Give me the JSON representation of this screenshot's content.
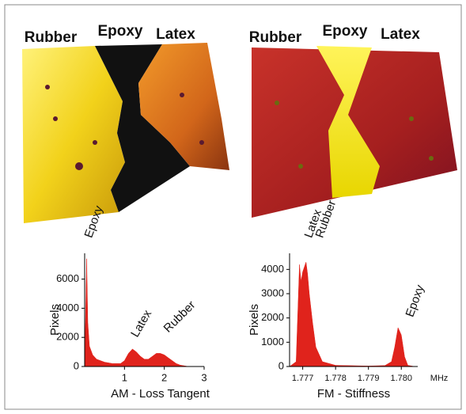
{
  "images": [
    {
      "labels": [
        "Rubber",
        "Epoxy",
        "Latex"
      ]
    },
    {
      "labels": [
        "Rubber",
        "Epoxy",
        "Latex"
      ]
    }
  ],
  "chart_data": [
    {
      "type": "area",
      "x_label": "AM - Loss Tangent",
      "y_label": "Pixels",
      "xlim": [
        0,
        3
      ],
      "xticks": [
        1,
        2,
        3
      ],
      "ylim": [
        0,
        7500
      ],
      "yticks": [
        0,
        2000,
        4000,
        6000
      ],
      "series": [
        {
          "color": "#e0231c",
          "x": [
            0,
            0.02,
            0.05,
            0.08,
            0.12,
            0.2,
            0.3,
            0.5,
            0.7,
            0.9,
            1.0,
            1.1,
            1.2,
            1.3,
            1.4,
            1.5,
            1.6,
            1.7,
            1.8,
            1.9,
            2.0,
            2.1,
            2.2,
            2.3,
            2.4,
            2.5,
            2.6,
            2.7
          ],
          "values": [
            0,
            3000,
            7400,
            3000,
            1400,
            800,
            500,
            300,
            200,
            200,
            400,
            900,
            1200,
            1000,
            700,
            500,
            500,
            700,
            900,
            900,
            800,
            600,
            400,
            200,
            100,
            50,
            0,
            0
          ]
        }
      ],
      "annotations": [
        "Epoxy",
        "Latex",
        "Rubber"
      ]
    },
    {
      "type": "area",
      "x_label": "FM - Stiffness",
      "y_label": "Pixels",
      "x_unit": "MHz",
      "xlim": [
        1.7766,
        1.7805
      ],
      "xticks": [
        1.777,
        1.778,
        1.779,
        {
          "value": 1.78,
          "label": "1.780"
        }
      ],
      "ylim": [
        0,
        4500
      ],
      "yticks": [
        0,
        1000,
        2000,
        3000,
        4000
      ],
      "series": [
        {
          "color": "#e0231c",
          "x": [
            1.7766,
            1.7768,
            1.7769,
            1.77695,
            1.777,
            1.7771,
            1.77715,
            1.7772,
            1.7773,
            1.7774,
            1.7776,
            1.778,
            1.779,
            1.7795,
            1.7797,
            1.7798,
            1.7799,
            1.78,
            1.7801,
            1.7802,
            1.7804
          ],
          "values": [
            0,
            200,
            4200,
            3500,
            3900,
            4300,
            3800,
            3000,
            1800,
            800,
            200,
            50,
            20,
            40,
            200,
            800,
            1600,
            1300,
            400,
            50,
            0
          ]
        }
      ],
      "annotations": [
        "Latex",
        "Rubber",
        "Epoxy"
      ]
    }
  ]
}
